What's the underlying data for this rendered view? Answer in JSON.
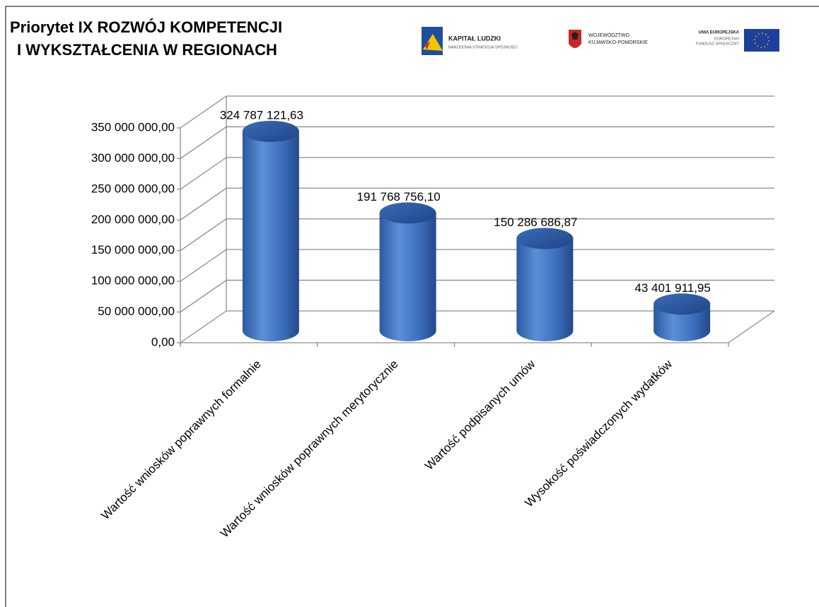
{
  "chart_data": {
    "type": "bar",
    "title": [
      "Priorytet IX ROZWÓJ KOMPETENCJI",
      "I WYKSZTAŁCENIA W REGIONACH"
    ],
    "logos": [
      {
        "name": "KAPITAŁ LUDZKI",
        "subtitle": "NARODOWA STRATEGIA SPÓJNOŚCI"
      },
      {
        "name": "WOJEWÓDZTWO",
        "subtitle": "KUJAWSKO-POMORSKIE"
      },
      {
        "name": "UNIA EUROPEJSKA",
        "subtitle": [
          "EUROPEJSKI",
          "FUNDUSZ SPOŁECZNY"
        ]
      }
    ],
    "categories": [
      "Wartość wniosków poprawnych formalnie",
      "Wartość wniosków poprawnych merytorycznie",
      "Wartość podpisanych umów",
      "Wysokość poświadczonych wydatków"
    ],
    "values": [
      324787121.63,
      191768756.1,
      150286686.87,
      43401911.95
    ],
    "value_labels": [
      "324 787 121,63",
      "191 768 756,10",
      "150 286 686,87",
      "43 401 911,95"
    ],
    "color": "#3c6fb8",
    "ylim": [
      0,
      350000000
    ],
    "yticks": [
      {
        "value": 0,
        "label": "0,00"
      },
      {
        "value": 50000000,
        "label": "50 000 000,00"
      },
      {
        "value": 100000000,
        "label": "100 000 000,00"
      },
      {
        "value": 150000000,
        "label": "150 000 000,00"
      },
      {
        "value": 200000000,
        "label": "200 000 000,00"
      },
      {
        "value": 250000000,
        "label": "250 000 000,00"
      },
      {
        "value": 300000000,
        "label": "300 000 000,00"
      },
      {
        "value": 350000000,
        "label": "350 000 000,00"
      }
    ],
    "grid": true
  }
}
